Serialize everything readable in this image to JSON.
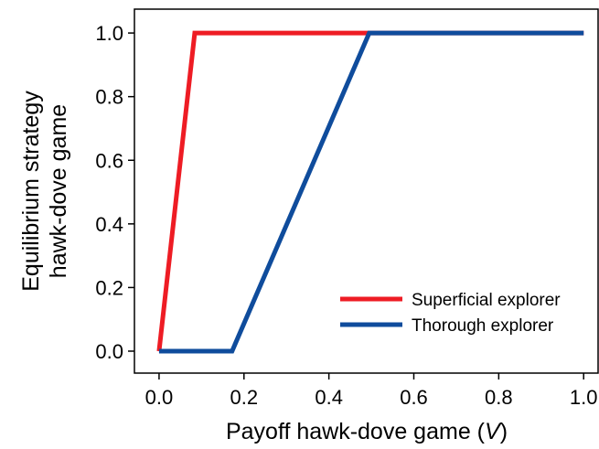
{
  "chart_data": {
    "type": "line",
    "xlabel": [
      "Payoff hawk-dove game (",
      "V",
      ")"
    ],
    "ylabel": [
      "Equilibrium strategy",
      "hawk-dove game"
    ],
    "series": [
      {
        "name": "Superficial explorer",
        "color": "#ee1c24",
        "x": [
          0,
          0.084,
          1
        ],
        "values": [
          0,
          1,
          1
        ]
      },
      {
        "name": "Thorough explorer",
        "color": "#0f4c9c",
        "x": [
          0,
          0.172,
          0.495,
          1
        ],
        "values": [
          0,
          0,
          1,
          1
        ]
      }
    ],
    "xlim": [
      -0.058,
      1.034
    ],
    "ylim": [
      -0.069,
      1.075
    ],
    "xticks": [
      {
        "value": 0,
        "label": "0.0"
      },
      {
        "value": 0.2,
        "label": "0.2"
      },
      {
        "value": 0.4,
        "label": "0.4"
      },
      {
        "value": 0.6,
        "label": "0.6"
      },
      {
        "value": 0.8,
        "label": "0.8"
      },
      {
        "value": 1,
        "label": "1.0"
      }
    ],
    "yticks": [
      {
        "value": 0,
        "label": "0.0"
      },
      {
        "value": 0.2,
        "label": "0.2"
      },
      {
        "value": 0.4,
        "label": "0.4"
      },
      {
        "value": 0.6,
        "label": "0.6"
      },
      {
        "value": 0.8,
        "label": "0.8"
      },
      {
        "value": 1,
        "label": "1.0"
      }
    ],
    "legend": "lower right",
    "grid": false
  }
}
